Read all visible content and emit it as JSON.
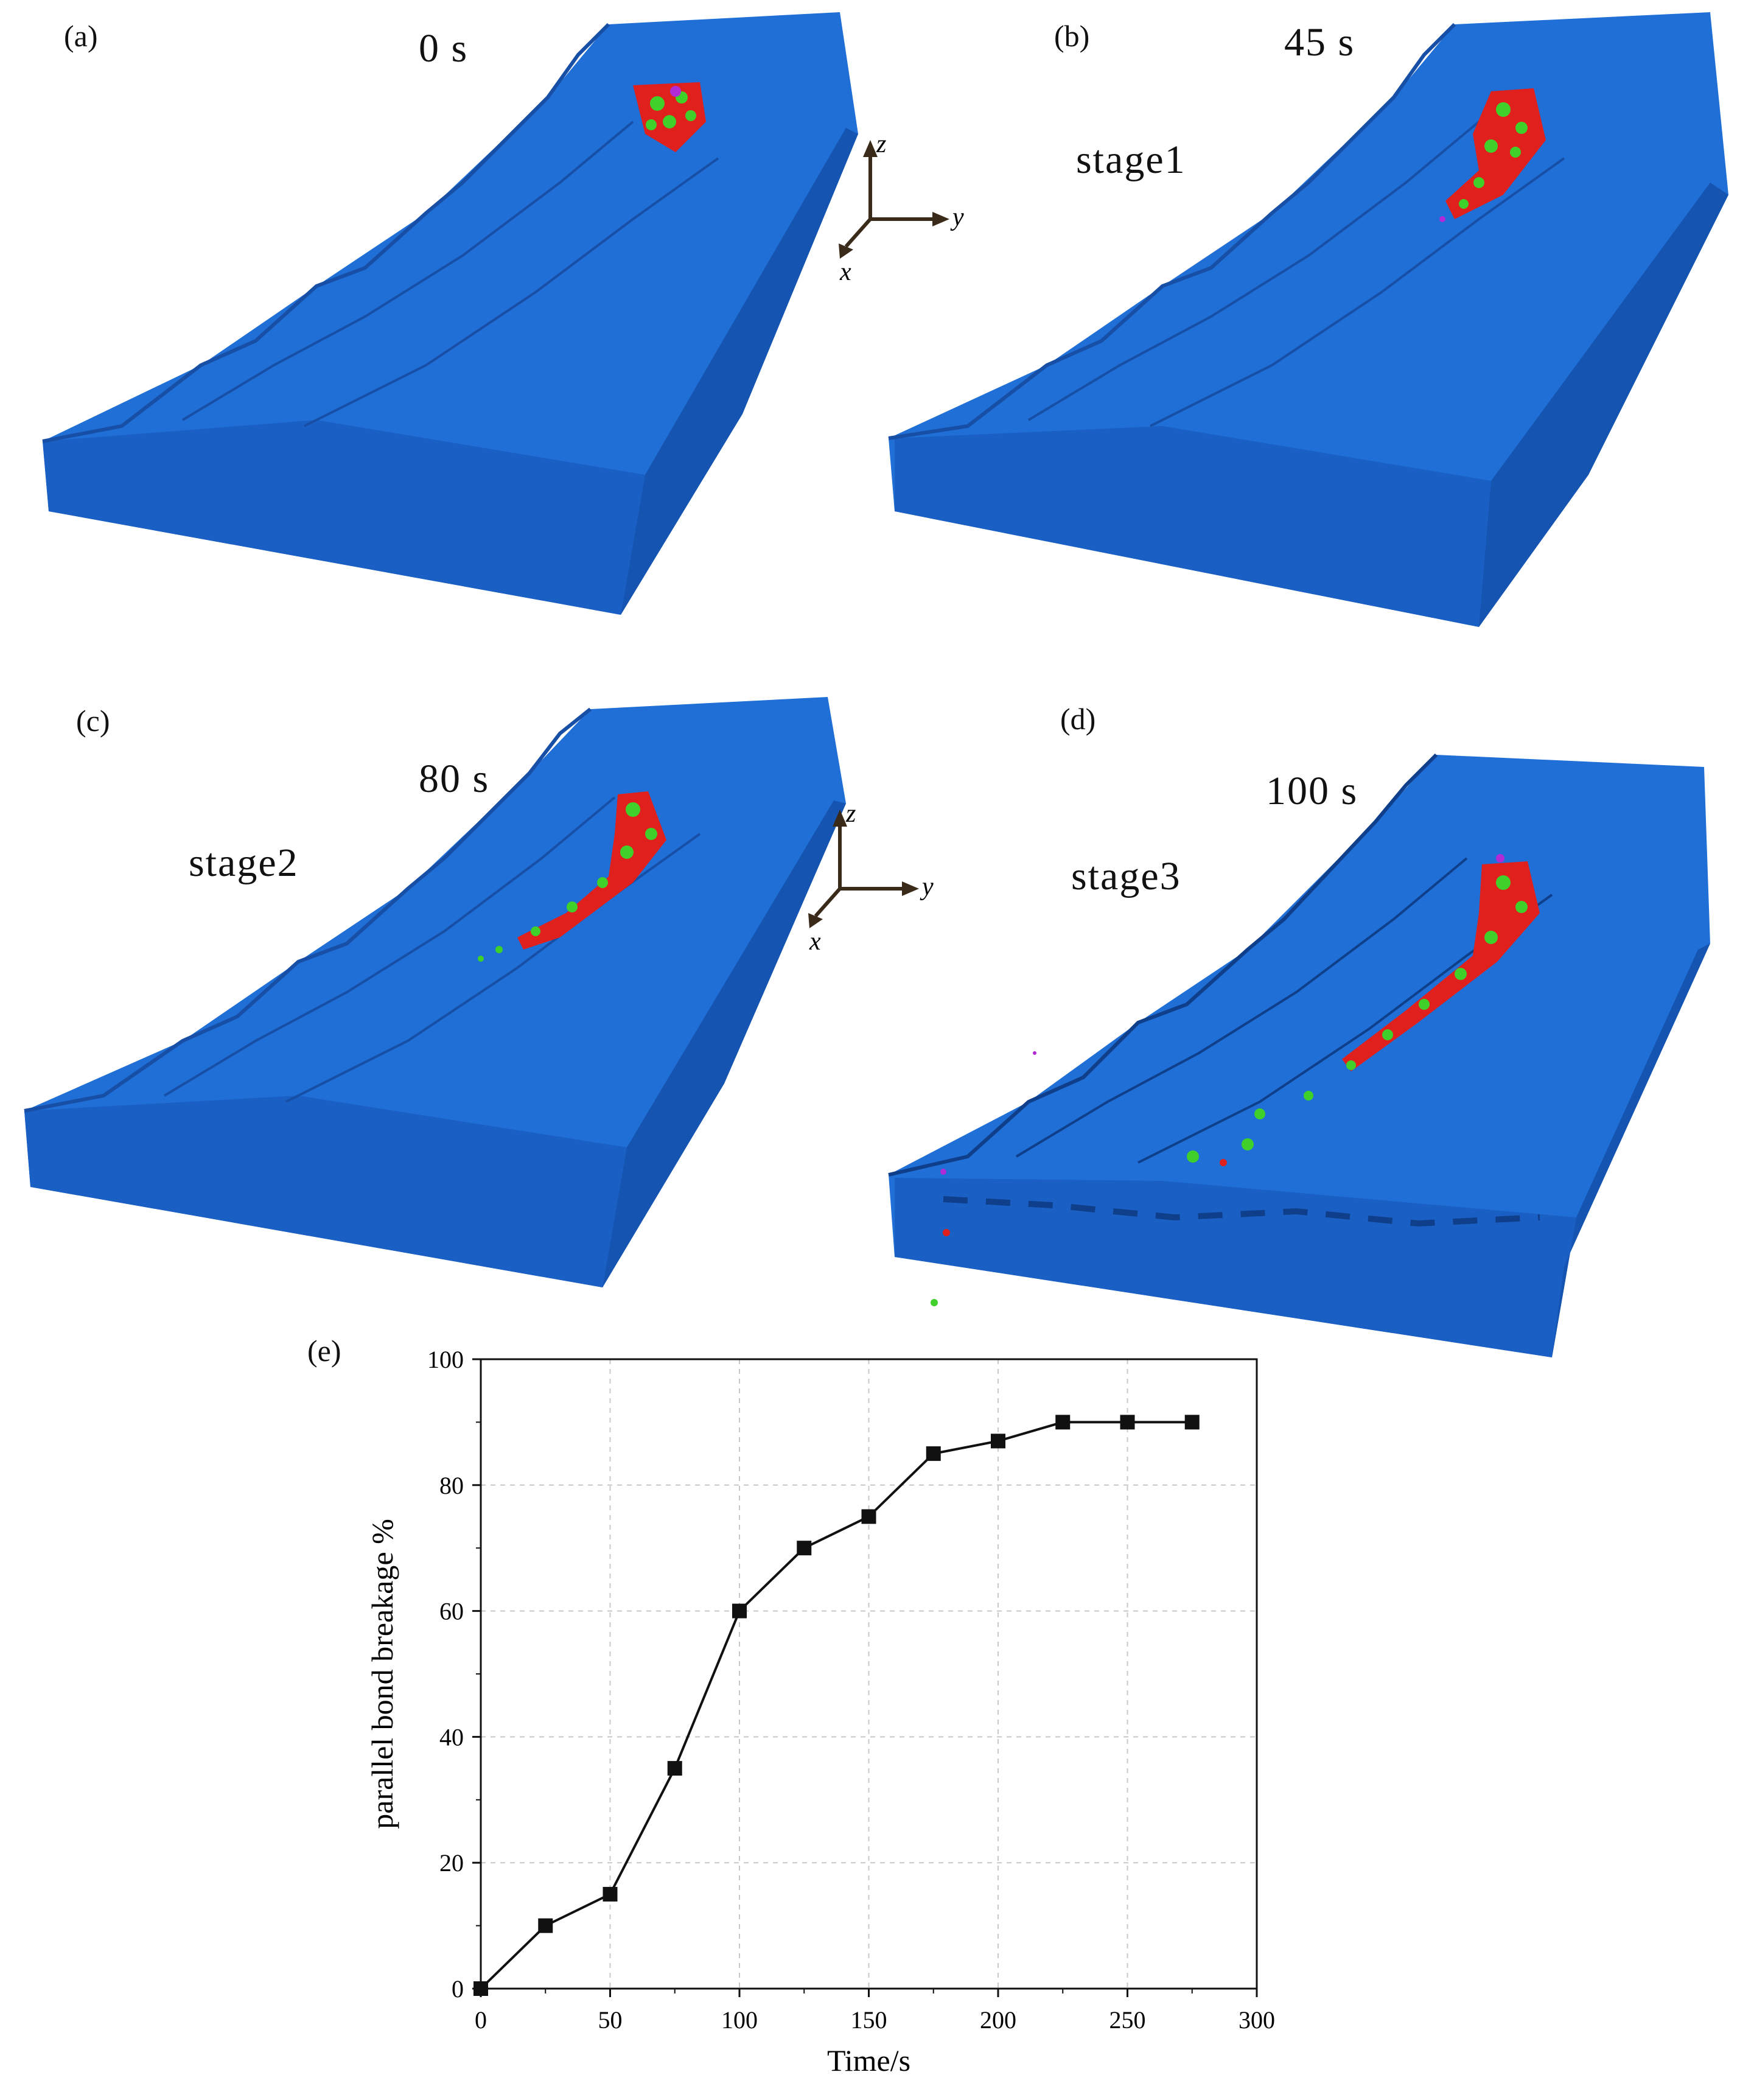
{
  "panels": [
    {
      "label": "(a)",
      "time": "0 s",
      "stage": "",
      "axes": true
    },
    {
      "label": "(b)",
      "time": "45 s",
      "stage": "stage1",
      "axes": false
    },
    {
      "label": "(c)",
      "time": "80 s",
      "stage": "stage2",
      "axes": true
    },
    {
      "label": "(d)",
      "time": "100 s",
      "stage": "stage3",
      "axes": false
    }
  ],
  "axis_letters": {
    "z": "z",
    "y": "y",
    "x": "x"
  },
  "colors": {
    "terrain": "#1f6fd6",
    "terrain_dark": "#1554b0",
    "terrain_side": "#1a5fc4",
    "particle_red": "#e0201c",
    "particle_green": "#3fd12a",
    "particle_purple": "#b02bd6"
  },
  "chart_label": "(e)",
  "chart_data": {
    "type": "line",
    "x": [
      0,
      25,
      50,
      75,
      100,
      125,
      150,
      175,
      200,
      225,
      250,
      275
    ],
    "values": [
      0,
      10,
      15,
      35,
      60,
      70,
      75,
      85,
      87,
      90,
      90,
      90
    ],
    "xlabel": "Time/s",
    "ylabel": "parallel bond breakage %",
    "xlim": [
      0,
      300
    ],
    "ylim": [
      0,
      100
    ],
    "xticks": [
      0,
      50,
      100,
      150,
      200,
      250,
      300
    ],
    "yticks": [
      0,
      20,
      40,
      60,
      80,
      100
    ],
    "grid": true,
    "marker": "square"
  }
}
